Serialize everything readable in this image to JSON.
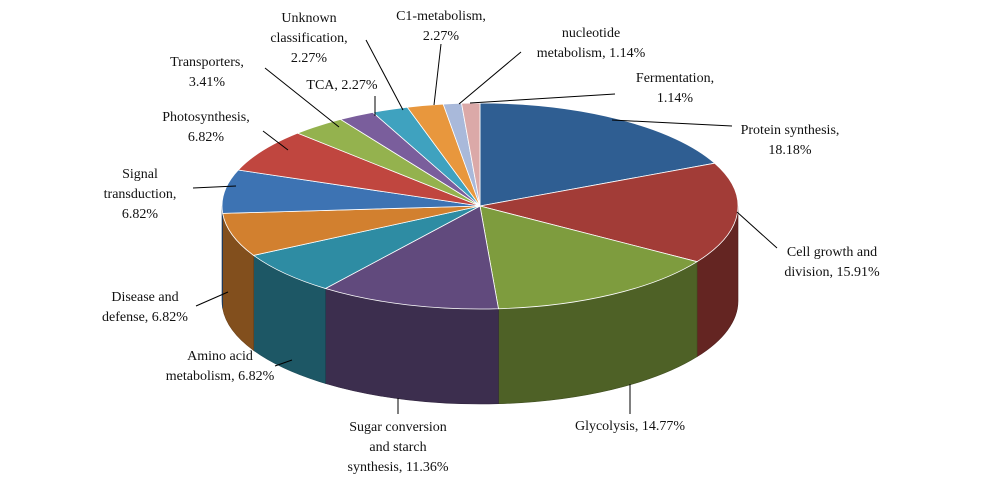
{
  "chart_data": {
    "type": "pie",
    "style": "3d",
    "title": "",
    "legend": "none",
    "slices": [
      {
        "label_lines": [
          "Protein synthesis,",
          "18.18%"
        ],
        "value": 18.18,
        "color": "#2F5E92"
      },
      {
        "label_lines": [
          "Cell growth and",
          "division, 15.91%"
        ],
        "value": 15.91,
        "color": "#A23C37"
      },
      {
        "label_lines": [
          "Glycolysis, 14.77%"
        ],
        "value": 14.77,
        "color": "#7E9C3E"
      },
      {
        "label_lines": [
          "Sugar conversion",
          "and starch",
          "synthesis, 11.36%"
        ],
        "value": 11.36,
        "color": "#614A7D"
      },
      {
        "label_lines": [
          "Amino acid",
          "metabolism, 6.82%"
        ],
        "value": 6.82,
        "color": "#2E8CA3"
      },
      {
        "label_lines": [
          "Disease and",
          "defense, 6.82%"
        ],
        "value": 6.82,
        "color": "#D2802F"
      },
      {
        "label_lines": [
          "Signal",
          "transduction,",
          "6.82%"
        ],
        "value": 6.82,
        "color": "#3D73B3"
      },
      {
        "label_lines": [
          "Photosynthesis,",
          "6.82%"
        ],
        "value": 6.82,
        "color": "#C0463F"
      },
      {
        "label_lines": [
          "Transporters,",
          "3.41%"
        ],
        "value": 3.41,
        "color": "#94B24E"
      },
      {
        "label_lines": [
          "TCA, 2.27%"
        ],
        "value": 2.27,
        "color": "#7A5E9C"
      },
      {
        "label_lines": [
          "Unknown",
          "classification,",
          "2.27%"
        ],
        "value": 2.27,
        "color": "#3FA2BF"
      },
      {
        "label_lines": [
          "C1-metabolism,",
          "2.27%"
        ],
        "value": 2.27,
        "color": "#E8973D"
      },
      {
        "label_lines": [
          "nucleotide",
          "metabolism, 1.14%"
        ],
        "value": 1.14,
        "color": "#A9B9DA"
      },
      {
        "label_lines": [
          "Fermentation,",
          "1.14%"
        ],
        "value": 1.14,
        "color": "#DBA9A8"
      }
    ]
  }
}
